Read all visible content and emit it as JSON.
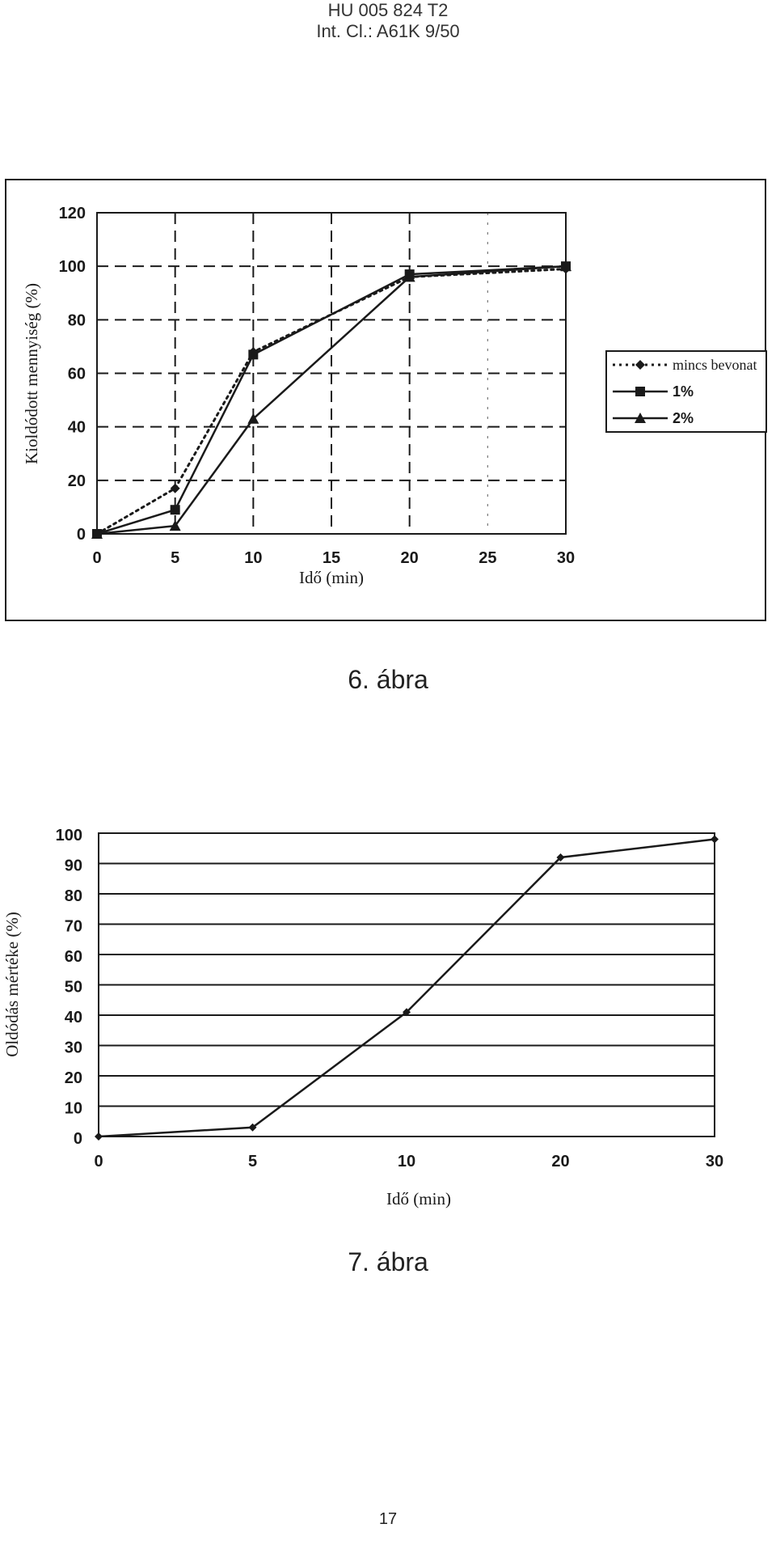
{
  "header": {
    "line1": "HU 005 824 T2",
    "line2": "Int. Cl.: A61K 9/50"
  },
  "figure6": {
    "caption": "6. ábra"
  },
  "figure7": {
    "caption": "7. ábra"
  },
  "page_number": "17",
  "chart_data": [
    {
      "type": "line",
      "xlabel": "Idő (min)",
      "ylabel": "Kioldódott mennyiség (%)",
      "xlim": [
        0,
        30
      ],
      "ylim": [
        0,
        120
      ],
      "x_ticks": [
        0,
        5,
        10,
        15,
        20,
        25,
        30
      ],
      "y_ticks": [
        0,
        20,
        40,
        60,
        80,
        100,
        120
      ],
      "grid": true,
      "legend_position": "right",
      "x": [
        0,
        5,
        10,
        20,
        30
      ],
      "series": [
        {
          "name": "mincs bevonat",
          "values": [
            0,
            17,
            68,
            96,
            99
          ],
          "style": "dotted",
          "marker": "diamond",
          "color": "#1a1a1a"
        },
        {
          "name": "1%",
          "values": [
            0,
            9,
            67,
            97,
            100
          ],
          "style": "solid",
          "marker": "square",
          "color": "#1a1a1a"
        },
        {
          "name": "2%",
          "values": [
            0,
            3,
            43,
            96,
            100
          ],
          "style": "solid",
          "marker": "triangle",
          "color": "#1a1a1a"
        }
      ]
    },
    {
      "type": "line",
      "xlabel": "Idő (min)",
      "ylabel": "Oldódás mértéke (%)",
      "ylim": [
        0,
        100
      ],
      "y_ticks": [
        0,
        10,
        20,
        30,
        40,
        50,
        60,
        70,
        80,
        90,
        100
      ],
      "categories": [
        "0",
        "5",
        "10",
        "20",
        "30"
      ],
      "grid": true,
      "series": [
        {
          "values": [
            0,
            3,
            41,
            92,
            98
          ],
          "marker": "diamond",
          "color": "#1a1a1a"
        }
      ]
    }
  ]
}
